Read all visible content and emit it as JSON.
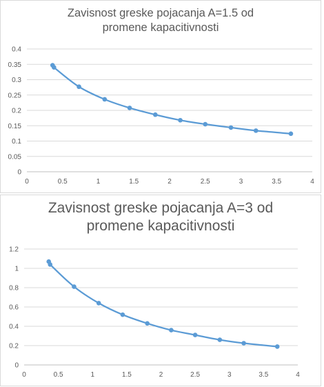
{
  "chart_data": [
    {
      "type": "scatter",
      "title": "Zavisnost greske pojacanja A=1.5 od promene kapacitivnosti",
      "xlabel": "",
      "ylabel": "",
      "xlim": [
        0,
        4
      ],
      "ylim": [
        0,
        0.4
      ],
      "x_ticks": [
        "0",
        "0.5",
        "1",
        "1.5",
        "2",
        "2.5",
        "3",
        "3.5",
        "4"
      ],
      "y_ticks": [
        "0",
        "0.05",
        "0.1",
        "0.15",
        "0.2",
        "0.25",
        "0.3",
        "0.35",
        "0.4"
      ],
      "grid": true,
      "line_color": "#5b9bd5",
      "series": [
        {
          "x": [
            0.36,
            0.38,
            0.73,
            1.09,
            1.44,
            1.8,
            2.15,
            2.5,
            2.86,
            3.21,
            3.7
          ],
          "y": [
            0.347,
            0.34,
            0.277,
            0.236,
            0.208,
            0.186,
            0.168,
            0.155,
            0.144,
            0.134,
            0.124
          ]
        }
      ]
    },
    {
      "type": "scatter",
      "title": "Zavisnost greske pojacanja A=3 od promene kapacitivnosti",
      "xlabel": "",
      "ylabel": "",
      "xlim": [
        0,
        4
      ],
      "ylim": [
        0,
        1.2
      ],
      "x_ticks": [
        "0",
        "0.5",
        "1",
        "1.5",
        "2",
        "2.5",
        "3",
        "3.5",
        "4"
      ],
      "y_ticks": [
        "0",
        "0.2",
        "0.4",
        "0.6",
        "0.8",
        "1",
        "1.2"
      ],
      "grid": true,
      "line_color": "#5b9bd5",
      "series": [
        {
          "x": [
            0.36,
            0.38,
            0.73,
            1.09,
            1.44,
            1.8,
            2.15,
            2.5,
            2.86,
            3.21,
            3.7
          ],
          "y": [
            1.07,
            1.04,
            0.81,
            0.64,
            0.52,
            0.43,
            0.36,
            0.31,
            0.26,
            0.225,
            0.19
          ]
        }
      ]
    }
  ]
}
